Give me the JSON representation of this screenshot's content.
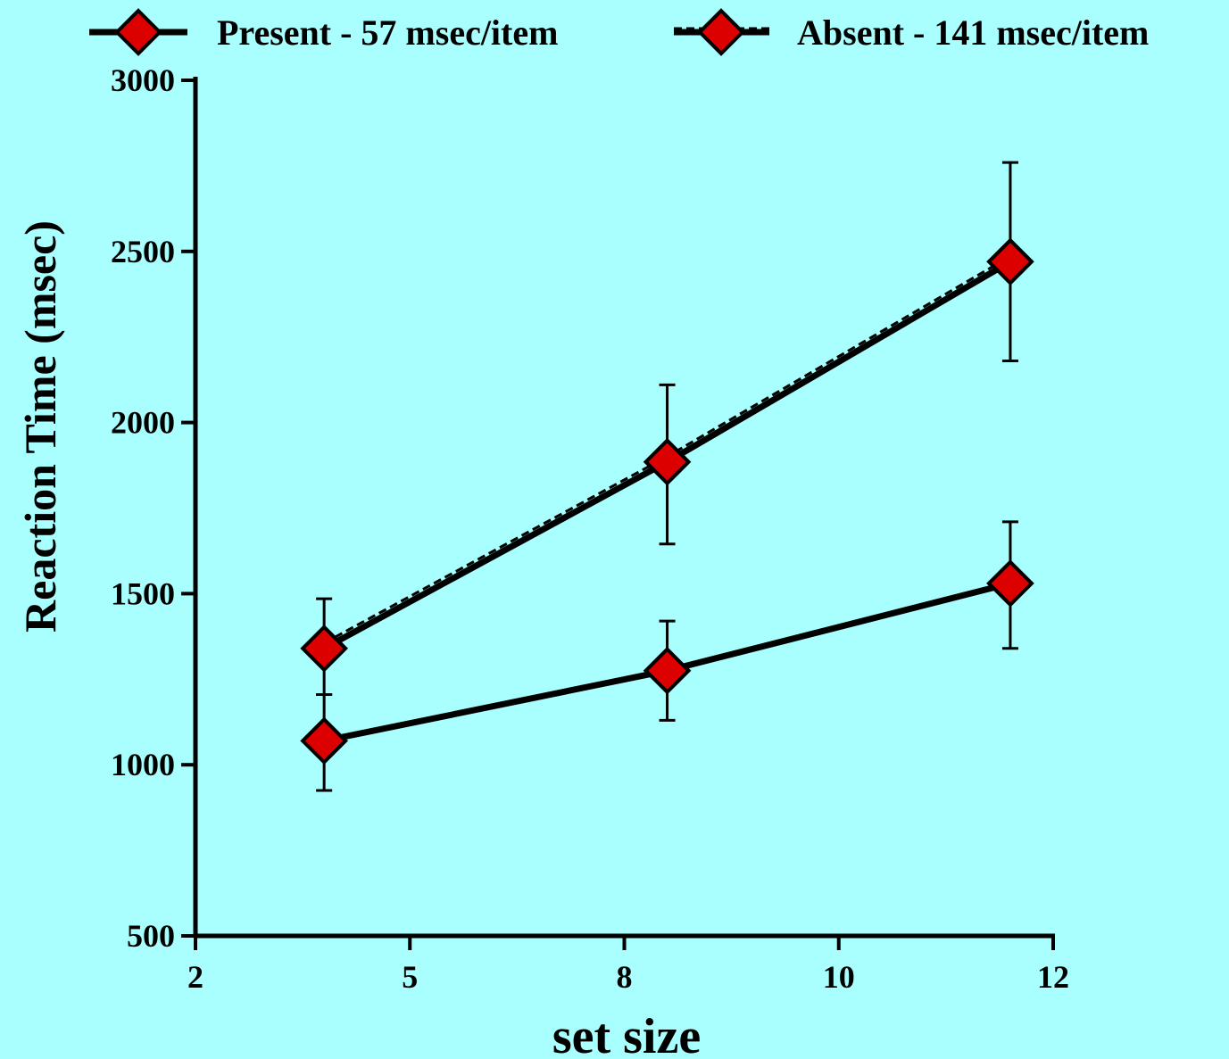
{
  "chart_data": {
    "type": "line",
    "title": "",
    "xlabel": "set size",
    "ylabel": "Reaction Time (msec)",
    "xlim": [
      2,
      12
    ],
    "ylim": [
      500,
      3000
    ],
    "x_tick_labels": [
      "2",
      "5",
      "8",
      "10",
      "12"
    ],
    "y_ticks": [
      500,
      1000,
      1500,
      2000,
      2500,
      3000
    ],
    "y_tick_labels": [
      "500",
      "1000",
      "1500",
      "2000",
      "2500",
      "3000"
    ],
    "legend_position": "top",
    "grid": false,
    "series": [
      {
        "name": "Present - 57 msec/item",
        "line_style": "solid",
        "color": "#DD0000",
        "x": [
          3.5,
          7.5,
          11.5
        ],
        "y": [
          1070,
          1275,
          1530
        ],
        "err_low": [
          925,
          1130,
          1340
        ],
        "err_high": [
          1205,
          1420,
          1710
        ]
      },
      {
        "name": "Absent - 141 msec/item",
        "line_style": "dashed",
        "color": "#DD0000",
        "x": [
          3.5,
          7.5,
          11.5
        ],
        "y": [
          1340,
          1885,
          2470
        ],
        "err_low": [
          1205,
          1645,
          2180
        ],
        "err_high": [
          1485,
          2110,
          2760
        ]
      }
    ]
  }
}
